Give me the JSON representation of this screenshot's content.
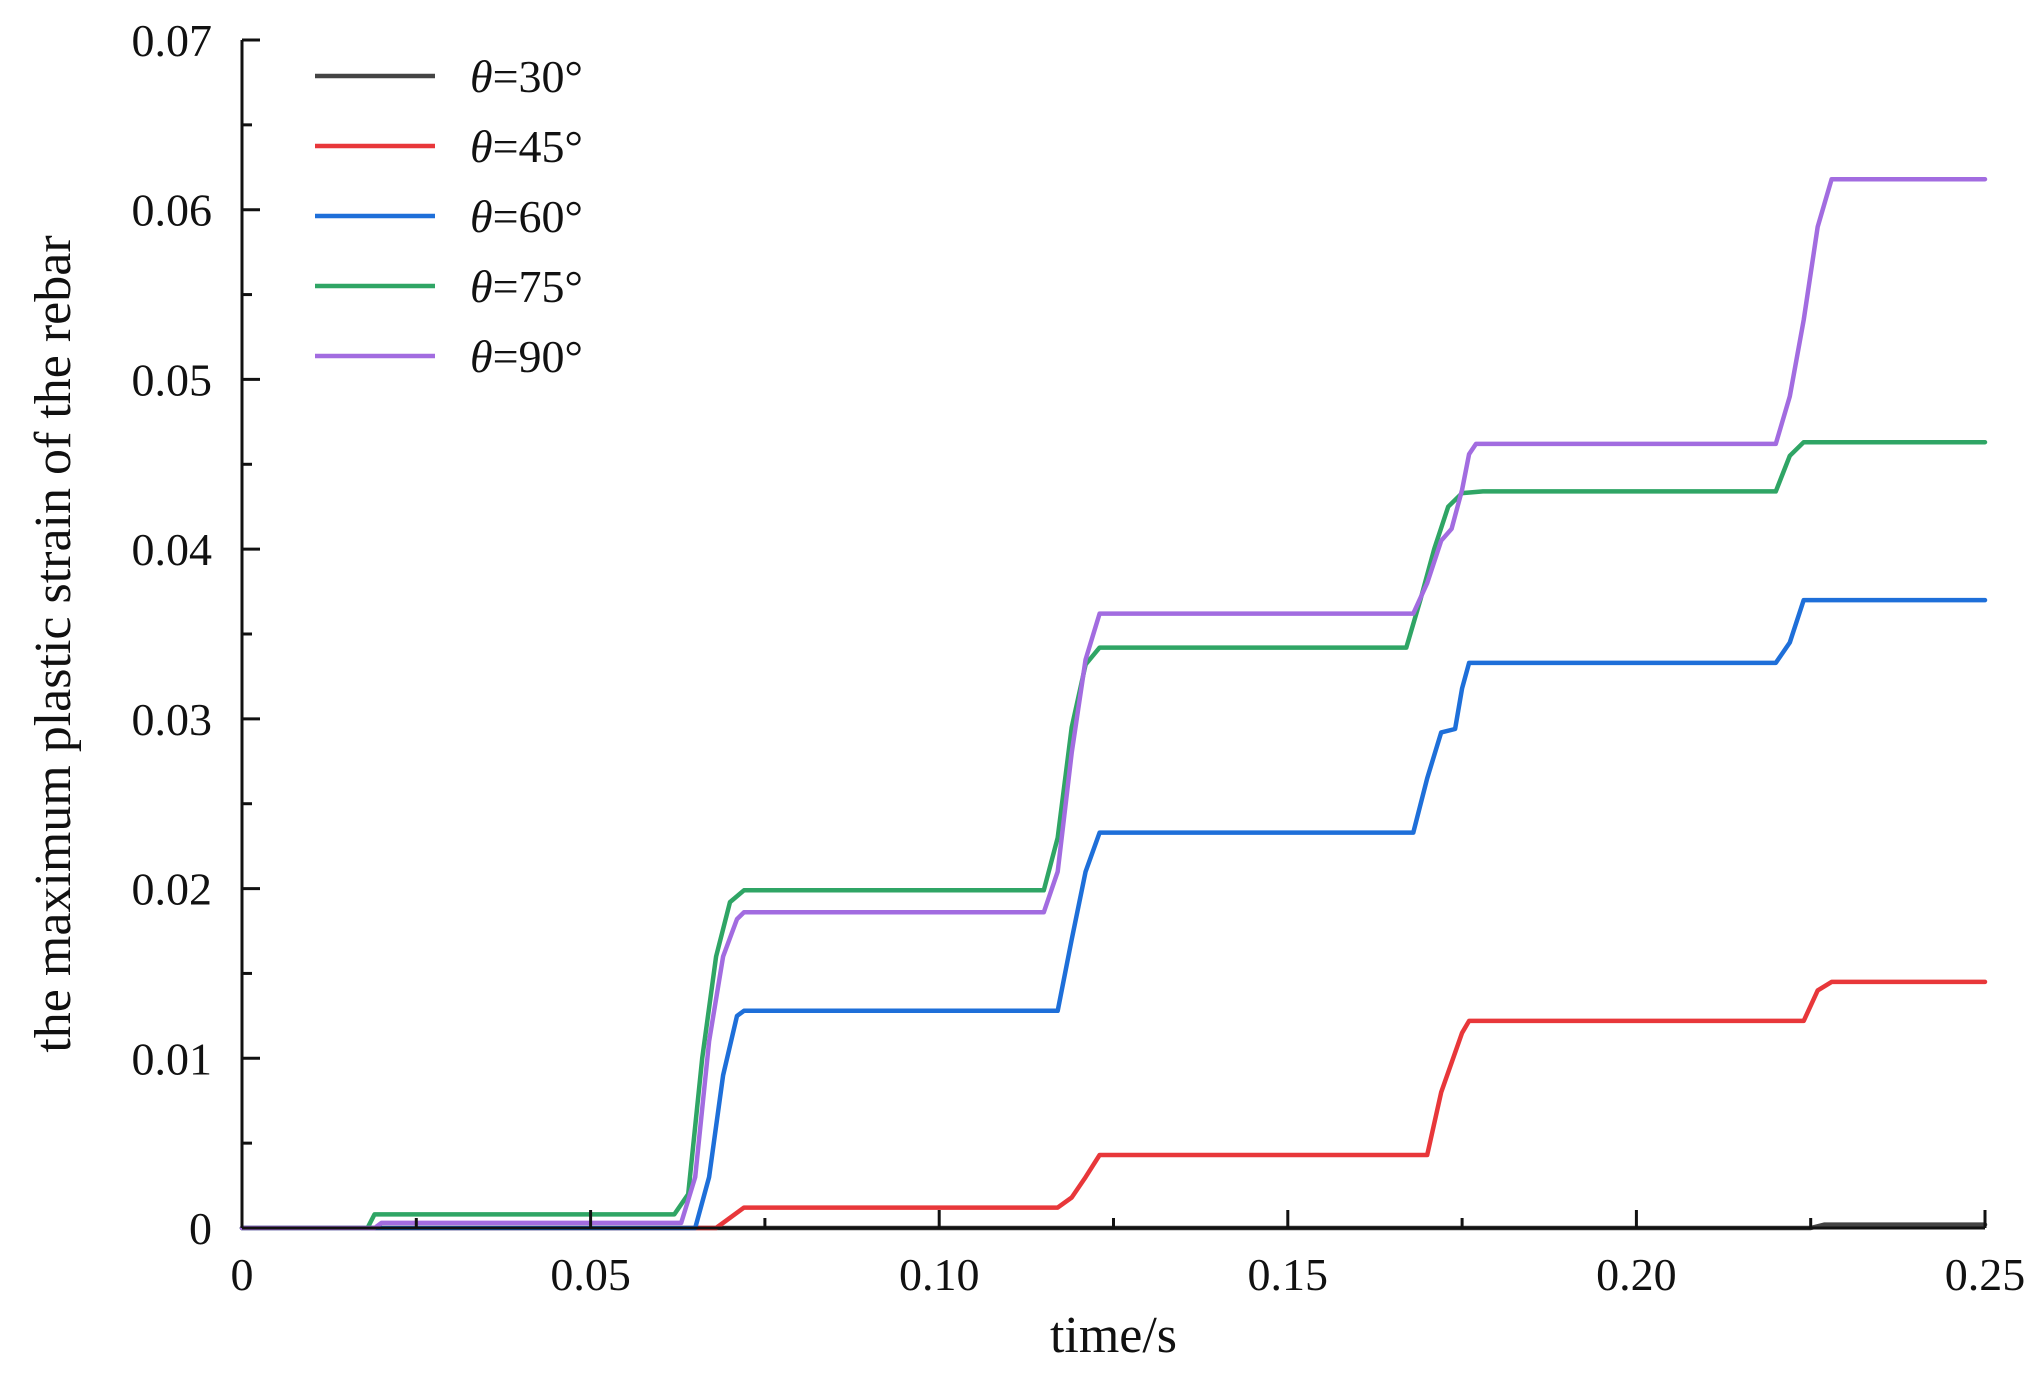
{
  "chart_data": {
    "type": "line",
    "title": "",
    "xlabel": "time/s",
    "ylabel": "the maximum plastic strain of the rebar",
    "xlim": [
      0,
      0.25
    ],
    "ylim": [
      0,
      0.07
    ],
    "xticks": [
      0,
      0.05,
      0.1,
      0.15,
      0.2,
      0.25
    ],
    "xtick_labels": [
      "0",
      "0.05",
      "0.10",
      "0.15",
      "0.20",
      "0.25"
    ],
    "yticks": [
      0,
      0.01,
      0.02,
      0.03,
      0.04,
      0.05,
      0.06,
      0.07
    ],
    "ytick_labels": [
      "0",
      "0.01",
      "0.02",
      "0.03",
      "0.04",
      "0.05",
      "0.06",
      "0.07"
    ],
    "grid": false,
    "legend_position": "top-left",
    "series": [
      {
        "name": "θ=30°",
        "theta_symbol": "θ",
        "label_rest": "=30°",
        "color": "#444444",
        "points": [
          [
            0,
            0
          ],
          [
            0.225,
            0
          ],
          [
            0.227,
            0.0002
          ],
          [
            0.25,
            0.0002
          ]
        ]
      },
      {
        "name": "θ=45°",
        "theta_symbol": "θ",
        "label_rest": "=45°",
        "color": "#e8373a",
        "points": [
          [
            0,
            0
          ],
          [
            0.068,
            0
          ],
          [
            0.072,
            0.0012
          ],
          [
            0.117,
            0.0012
          ],
          [
            0.119,
            0.0018
          ],
          [
            0.121,
            0.003
          ],
          [
            0.123,
            0.0043
          ],
          [
            0.17,
            0.0043
          ],
          [
            0.172,
            0.008
          ],
          [
            0.175,
            0.0115
          ],
          [
            0.176,
            0.0122
          ],
          [
            0.224,
            0.0122
          ],
          [
            0.226,
            0.014
          ],
          [
            0.228,
            0.0145
          ],
          [
            0.25,
            0.0145
          ]
        ]
      },
      {
        "name": "θ=60°",
        "theta_symbol": "θ",
        "label_rest": "=60°",
        "color": "#1e6fd9",
        "points": [
          [
            0,
            0
          ],
          [
            0.065,
            0
          ],
          [
            0.067,
            0.003
          ],
          [
            0.069,
            0.009
          ],
          [
            0.071,
            0.0125
          ],
          [
            0.072,
            0.0128
          ],
          [
            0.117,
            0.0128
          ],
          [
            0.119,
            0.017
          ],
          [
            0.121,
            0.021
          ],
          [
            0.123,
            0.0233
          ],
          [
            0.168,
            0.0233
          ],
          [
            0.17,
            0.0265
          ],
          [
            0.172,
            0.0292
          ],
          [
            0.174,
            0.0294
          ],
          [
            0.175,
            0.0318
          ],
          [
            0.176,
            0.0333
          ],
          [
            0.22,
            0.0333
          ],
          [
            0.222,
            0.0345
          ],
          [
            0.224,
            0.037
          ],
          [
            0.25,
            0.037
          ]
        ]
      },
      {
        "name": "θ=75°",
        "theta_symbol": "θ",
        "label_rest": "=75°",
        "color": "#2fa565",
        "points": [
          [
            0,
            0
          ],
          [
            0.018,
            0
          ],
          [
            0.019,
            0.0008
          ],
          [
            0.062,
            0.0008
          ],
          [
            0.064,
            0.002
          ],
          [
            0.066,
            0.01
          ],
          [
            0.068,
            0.016
          ],
          [
            0.07,
            0.0192
          ],
          [
            0.072,
            0.0199
          ],
          [
            0.115,
            0.0199
          ],
          [
            0.117,
            0.023
          ],
          [
            0.119,
            0.0295
          ],
          [
            0.121,
            0.0332
          ],
          [
            0.123,
            0.0342
          ],
          [
            0.167,
            0.0342
          ],
          [
            0.169,
            0.037
          ],
          [
            0.171,
            0.04
          ],
          [
            0.173,
            0.0425
          ],
          [
            0.175,
            0.0433
          ],
          [
            0.178,
            0.0434
          ],
          [
            0.22,
            0.0434
          ],
          [
            0.222,
            0.0455
          ],
          [
            0.224,
            0.0463
          ],
          [
            0.25,
            0.0463
          ]
        ]
      },
      {
        "name": "θ=90°",
        "theta_symbol": "θ",
        "label_rest": "=90°",
        "color": "#a26ce0",
        "points": [
          [
            0,
            0
          ],
          [
            0.019,
            0
          ],
          [
            0.02,
            0.0003
          ],
          [
            0.063,
            0.0003
          ],
          [
            0.065,
            0.003
          ],
          [
            0.067,
            0.011
          ],
          [
            0.069,
            0.016
          ],
          [
            0.071,
            0.0182
          ],
          [
            0.072,
            0.0186
          ],
          [
            0.115,
            0.0186
          ],
          [
            0.117,
            0.021
          ],
          [
            0.119,
            0.028
          ],
          [
            0.121,
            0.0335
          ],
          [
            0.123,
            0.0362
          ],
          [
            0.168,
            0.0362
          ],
          [
            0.17,
            0.038
          ],
          [
            0.172,
            0.0405
          ],
          [
            0.1735,
            0.0412
          ],
          [
            0.175,
            0.0435
          ],
          [
            0.176,
            0.0456
          ],
          [
            0.177,
            0.0462
          ],
          [
            0.22,
            0.0462
          ],
          [
            0.222,
            0.049
          ],
          [
            0.224,
            0.0535
          ],
          [
            0.226,
            0.059
          ],
          [
            0.228,
            0.0618
          ],
          [
            0.25,
            0.0618
          ]
        ]
      }
    ]
  }
}
